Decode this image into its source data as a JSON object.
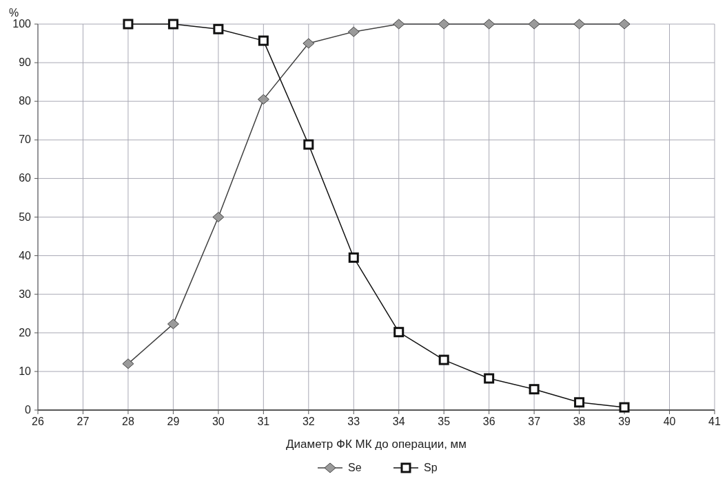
{
  "chart_data": {
    "type": "line",
    "ylabel": "%",
    "xlabel": "Диаметр ФК МК до операции, мм",
    "x": [
      28,
      29,
      30,
      31,
      32,
      33,
      34,
      35,
      36,
      37,
      38,
      39
    ],
    "series": [
      {
        "name": "Se",
        "color": "#404040",
        "marker": "diamond",
        "values": [
          12,
          22.3,
          50,
          80.5,
          95,
          98,
          100,
          100,
          100,
          100,
          100,
          100
        ]
      },
      {
        "name": "Sp",
        "color": "#111111",
        "marker": "square",
        "values": [
          100,
          100,
          98.7,
          95.7,
          68.8,
          39.5,
          20.2,
          13,
          8.2,
          5.4,
          2,
          0.7
        ]
      }
    ],
    "xlim": [
      26,
      41
    ],
    "xticks": [
      26,
      27,
      28,
      29,
      30,
      31,
      32,
      33,
      34,
      35,
      36,
      37,
      38,
      39,
      40,
      41
    ],
    "ylim": [
      0,
      100
    ],
    "yticks": [
      0,
      10,
      20,
      30,
      40,
      50,
      60,
      70,
      80,
      90,
      100
    ],
    "grid": true,
    "legend": "bottom"
  }
}
